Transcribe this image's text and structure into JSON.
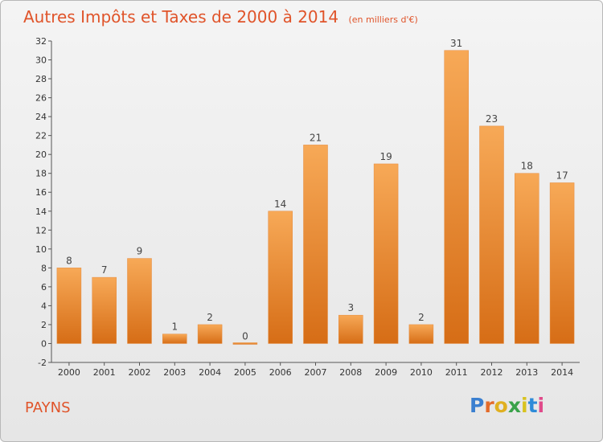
{
  "title": "Autres Impôts et Taxes de 2000 à 2014",
  "unit_note": "(en milliers d'€)",
  "commune": "PAYNS",
  "logo": {
    "letters": [
      "P",
      "r",
      "o",
      "x",
      "i",
      "t",
      "i"
    ],
    "colors": [
      "#3a7fd0",
      "#e36b2a",
      "#e0b020",
      "#3aa24a",
      "#d8c31f",
      "#2d8bd8",
      "#e04a8a"
    ]
  },
  "colors": {
    "bar": "#f08d33",
    "bar_light": "#f7a957",
    "bar_dark": "#d66d16",
    "title": "#e0542a"
  },
  "chart_data": {
    "type": "bar",
    "categories": [
      "2000",
      "2001",
      "2002",
      "2003",
      "2004",
      "2005",
      "2006",
      "2007",
      "2008",
      "2009",
      "2010",
      "2011",
      "2012",
      "2013",
      "2014"
    ],
    "values": [
      8,
      7,
      9,
      1,
      2,
      0,
      14,
      21,
      3,
      19,
      2,
      31,
      23,
      18,
      17
    ],
    "ylim": [
      -2,
      32
    ],
    "yticks": [
      -2,
      0,
      2,
      4,
      6,
      8,
      10,
      12,
      14,
      16,
      18,
      20,
      22,
      24,
      26,
      28,
      30,
      32
    ],
    "grid": false,
    "legend": "none"
  }
}
